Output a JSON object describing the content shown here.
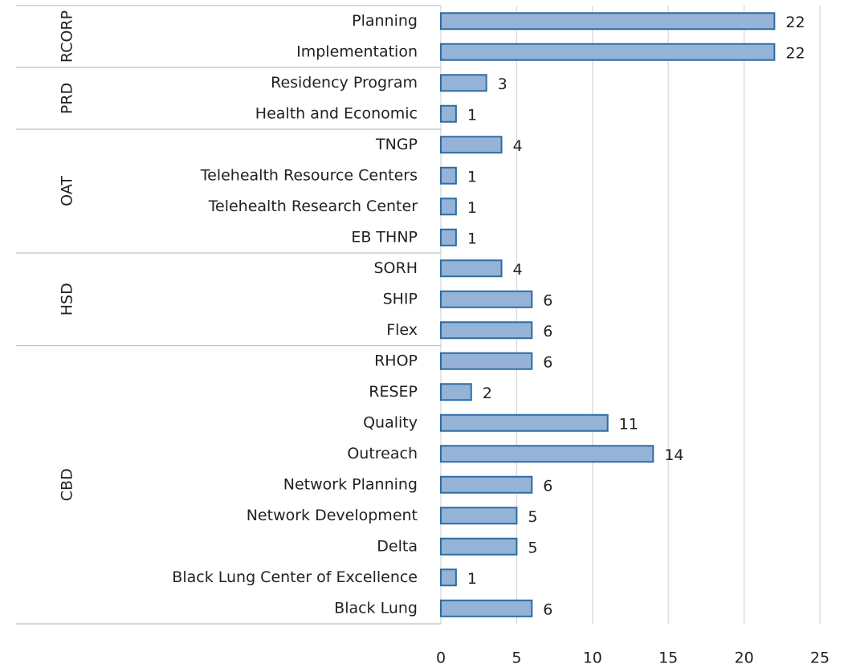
{
  "chart_data": {
    "type": "bar",
    "orientation": "horizontal",
    "groups": [
      {
        "name": "RCORP",
        "categories": [
          "Planning",
          "Implementation"
        ],
        "values": [
          22,
          22
        ]
      },
      {
        "name": "PRD",
        "categories": [
          "Residency Program",
          "Health and Economic"
        ],
        "values": [
          3,
          1
        ]
      },
      {
        "name": "OAT",
        "categories": [
          "TNGP",
          "Telehealth Resource Centers",
          "Telehealth Research Center",
          "EB THNP"
        ],
        "values": [
          4,
          1,
          1,
          1
        ]
      },
      {
        "name": "HSD",
        "categories": [
          "SORH",
          "SHIP",
          "Flex"
        ],
        "values": [
          4,
          6,
          6
        ]
      },
      {
        "name": "CBD",
        "categories": [
          "RHOP",
          "RESEP",
          "Quality",
          "Outreach",
          "Network Planning",
          "Network Development",
          "Delta",
          "Black Lung Center of Excellence",
          "Black Lung"
        ],
        "values": [
          6,
          2,
          11,
          14,
          6,
          5,
          5,
          1,
          6
        ]
      }
    ],
    "color": "#95b3d7",
    "edge_color": "#2e6ca4",
    "xlim": [
      0,
      25
    ],
    "xticks": [
      0,
      5,
      10,
      15,
      20,
      25
    ],
    "grid": true
  }
}
